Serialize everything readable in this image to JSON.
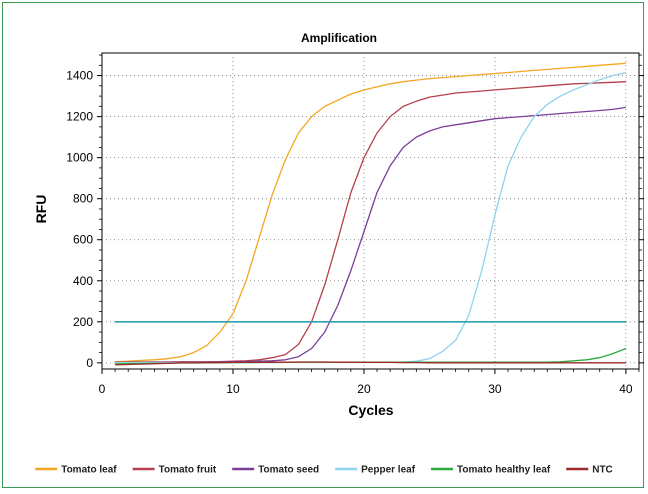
{
  "chart_data": {
    "type": "line",
    "title": "Amplification",
    "xlabel": "Cycles",
    "ylabel": "RFU",
    "xlim": [
      0,
      41
    ],
    "ylim": [
      -30,
      1510
    ],
    "xticks": [
      0,
      10,
      20,
      30,
      40
    ],
    "yticks": [
      0,
      200,
      400,
      600,
      800,
      1000,
      1200,
      1400
    ],
    "grid": true,
    "legend_position": "bottom",
    "threshold": {
      "value": 200,
      "color": "#2aa1b0"
    },
    "x": [
      1,
      2,
      3,
      4,
      5,
      6,
      7,
      8,
      9,
      10,
      11,
      12,
      13,
      14,
      15,
      16,
      17,
      18,
      19,
      20,
      21,
      22,
      23,
      24,
      25,
      26,
      27,
      28,
      29,
      30,
      31,
      32,
      33,
      34,
      35,
      36,
      37,
      38,
      39,
      40
    ],
    "series": [
      {
        "name": "Tomato leaf",
        "color": "#f5a623",
        "values": [
          5,
          8,
          12,
          15,
          20,
          30,
          50,
          85,
          150,
          240,
          400,
          610,
          820,
          990,
          1120,
          1200,
          1250,
          1280,
          1310,
          1330,
          1345,
          1360,
          1370,
          1378,
          1385,
          1390,
          1395,
          1400,
          1405,
          1410,
          1415,
          1420,
          1425,
          1430,
          1435,
          1440,
          1445,
          1450,
          1455,
          1460
        ]
      },
      {
        "name": "Tomato fruit",
        "color": "#b5404c",
        "values": [
          3,
          3,
          4,
          4,
          4,
          5,
          5,
          5,
          6,
          8,
          10,
          15,
          25,
          40,
          90,
          200,
          380,
          600,
          830,
          1000,
          1120,
          1200,
          1250,
          1275,
          1295,
          1305,
          1315,
          1320,
          1325,
          1330,
          1335,
          1340,
          1345,
          1350,
          1355,
          1360,
          1362,
          1365,
          1367,
          1370
        ]
      },
      {
        "name": "Tomato seed",
        "color": "#7b3f98",
        "values": [
          2,
          2,
          2,
          3,
          3,
          3,
          3,
          4,
          4,
          5,
          6,
          8,
          10,
          15,
          30,
          70,
          150,
          280,
          450,
          640,
          830,
          960,
          1050,
          1100,
          1130,
          1150,
          1160,
          1170,
          1180,
          1190,
          1195,
          1200,
          1205,
          1210,
          1215,
          1220,
          1225,
          1230,
          1235,
          1245
        ]
      },
      {
        "name": "Pepper leaf",
        "color": "#8fd3ef",
        "values": [
          1,
          1,
          1,
          1,
          1,
          1,
          1,
          1,
          1,
          1,
          1,
          1,
          1,
          2,
          2,
          2,
          2,
          2,
          2,
          2,
          3,
          3,
          4,
          8,
          20,
          55,
          110,
          230,
          450,
          720,
          960,
          1100,
          1200,
          1260,
          1300,
          1330,
          1355,
          1380,
          1400,
          1415
        ]
      },
      {
        "name": "Tomato healthy leaf",
        "color": "#2eaa3c",
        "values": [
          -5,
          -4,
          -3,
          -2,
          -2,
          -1,
          -1,
          0,
          0,
          1,
          1,
          2,
          2,
          3,
          3,
          3,
          3,
          3,
          3,
          3,
          3,
          3,
          3,
          3,
          3,
          3,
          3,
          3,
          3,
          3,
          3,
          3,
          3,
          3,
          5,
          10,
          15,
          25,
          45,
          70
        ]
      },
      {
        "name": "NTC",
        "color": "#9e2a2a",
        "values": [
          -10,
          -8,
          -6,
          -4,
          -2,
          0,
          0,
          1,
          1,
          2,
          2,
          2,
          3,
          3,
          4,
          4,
          4,
          3,
          3,
          2,
          2,
          2,
          1,
          1,
          0,
          0,
          0,
          0,
          0,
          0,
          0,
          0,
          0,
          0,
          0,
          0,
          0,
          0,
          0,
          0
        ]
      }
    ]
  }
}
